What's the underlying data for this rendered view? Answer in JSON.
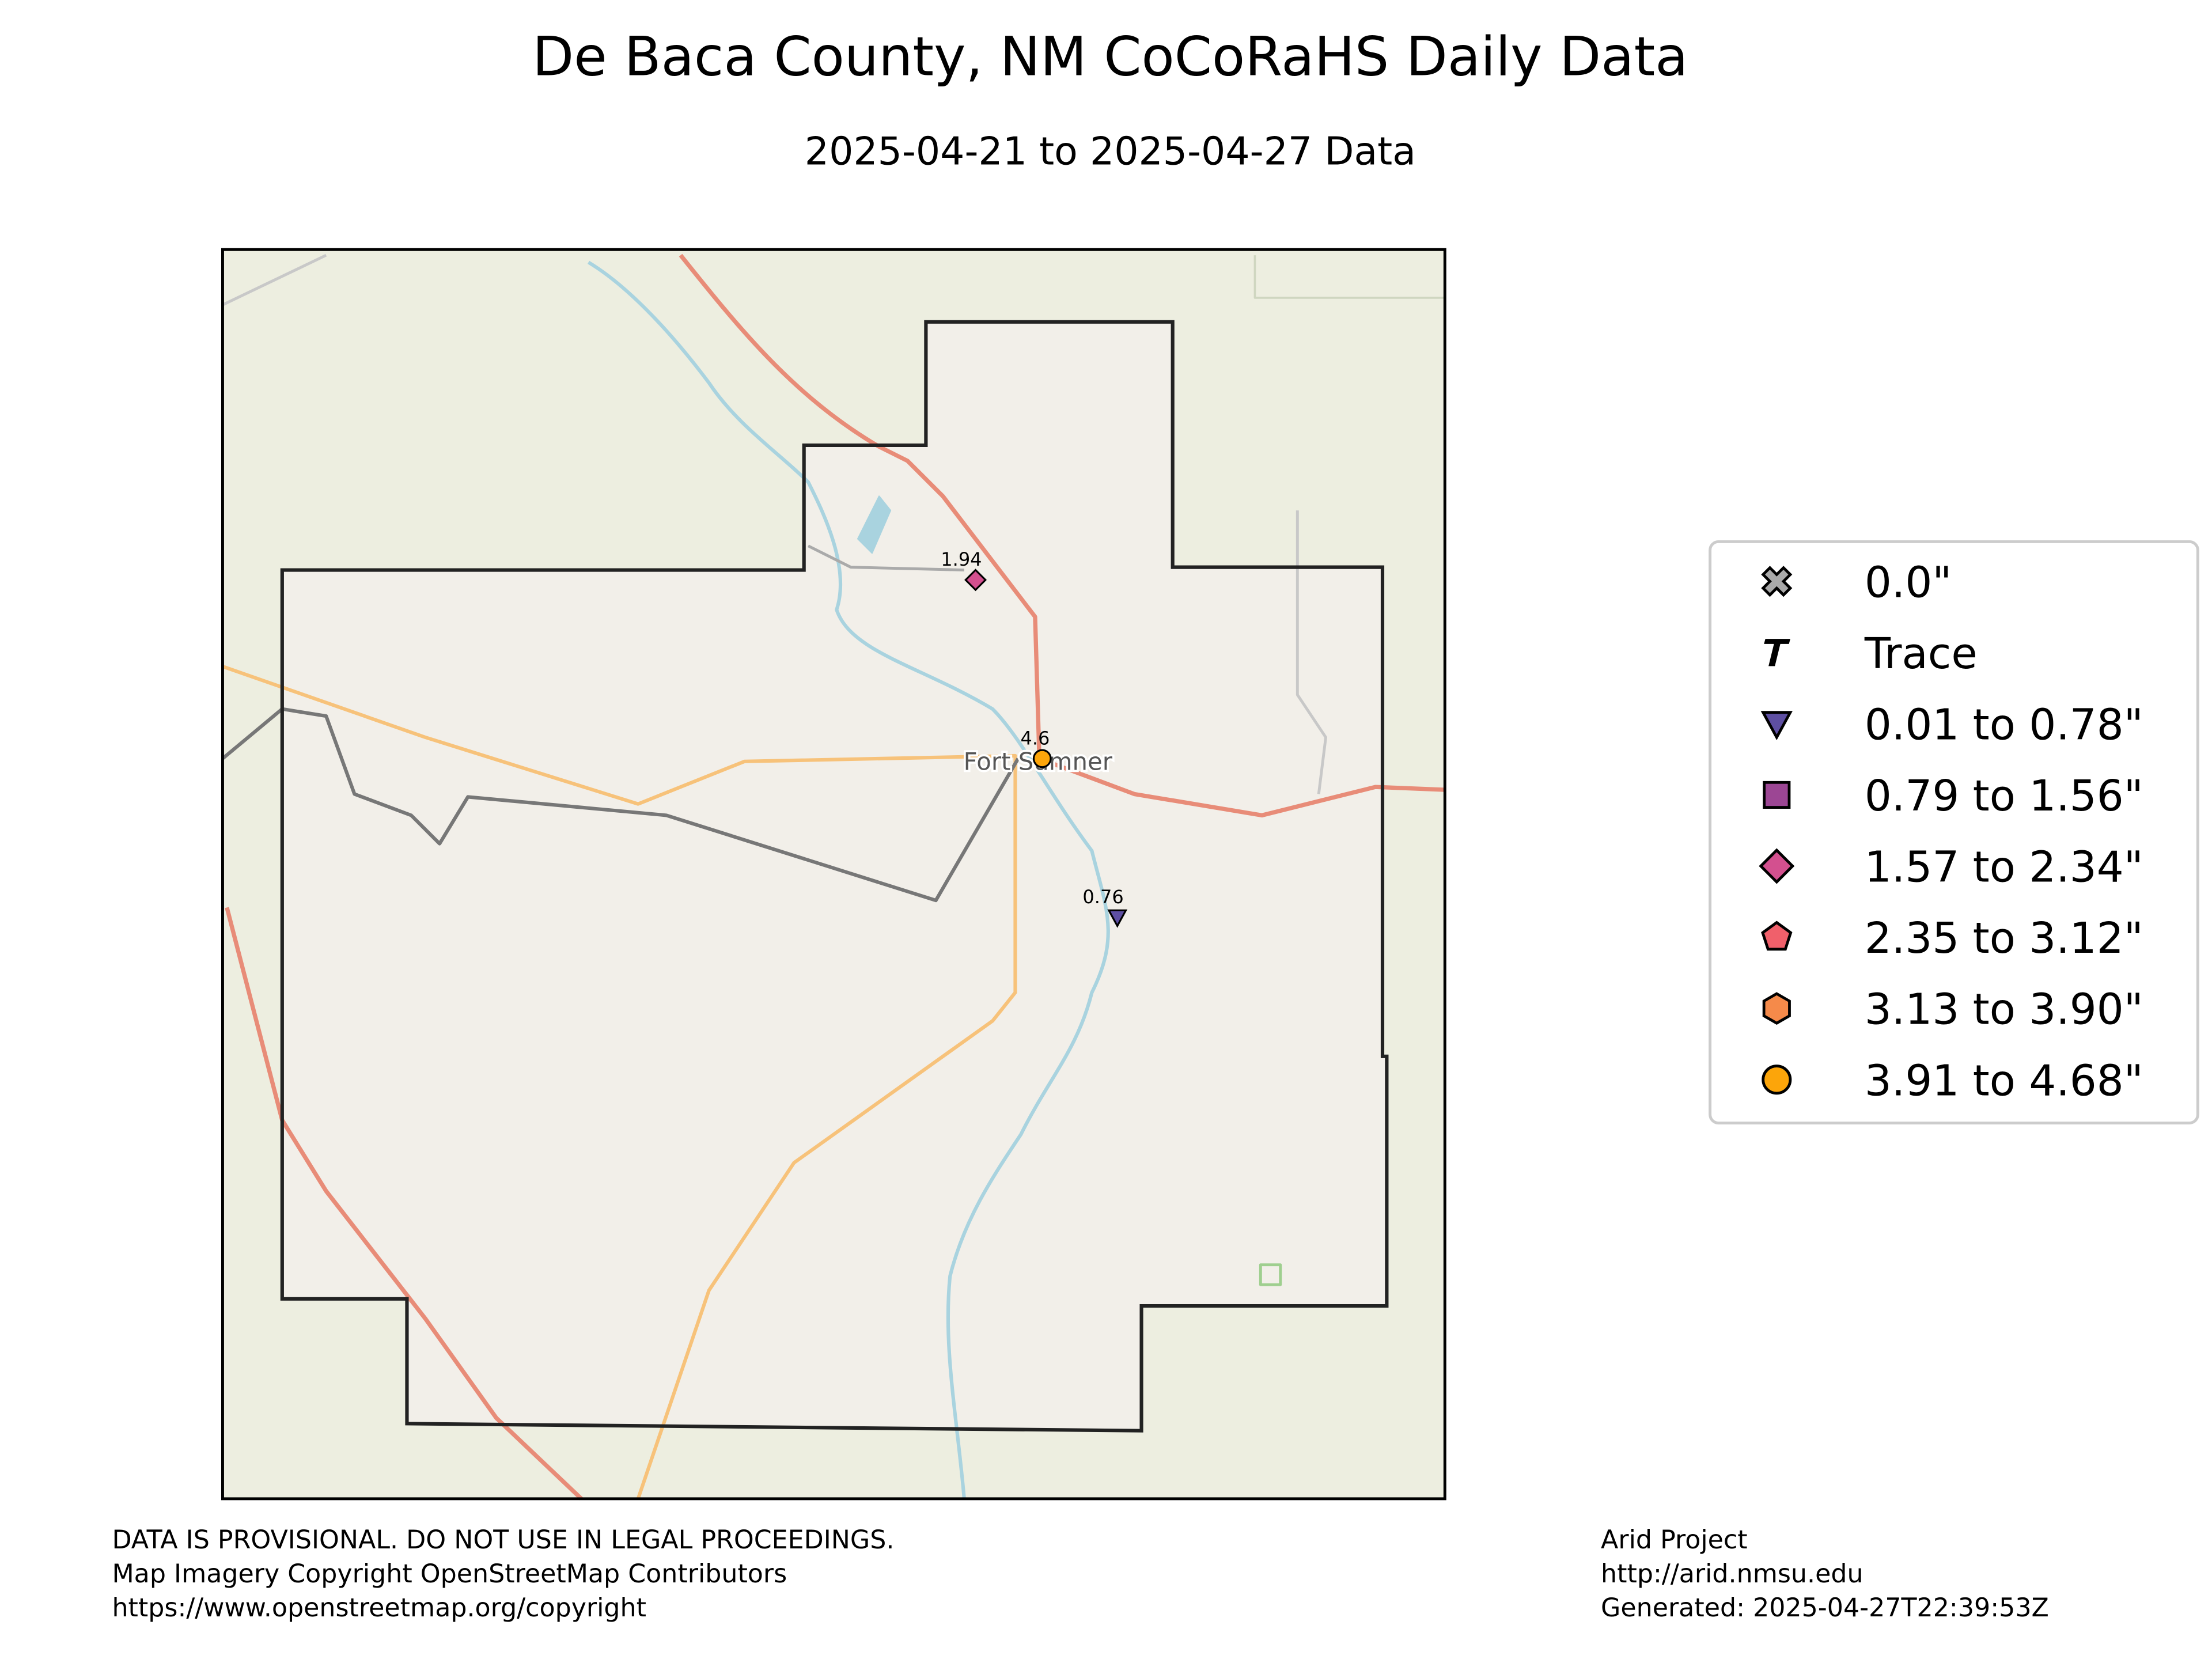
{
  "title": "De Baca County, NM CoCoRaHS Daily Data",
  "subtitle": "2025-04-21 to 2025-04-27 Data",
  "map": {
    "place_label": "Fort Sumner",
    "stations": [
      {
        "value": 1.94,
        "marker": "diamond",
        "color": "#d3508f"
      },
      {
        "value": 4.6,
        "marker": "circle",
        "color": "#fca50a"
      },
      {
        "value": 0.76,
        "marker": "triangle",
        "color": "#5e4fa2"
      }
    ]
  },
  "legend": [
    {
      "label": "0.0\"",
      "marker": "x",
      "color": "#aaaaaa"
    },
    {
      "label": "Trace",
      "marker": "T",
      "color": "#000000"
    },
    {
      "label": "0.01 to 0.78\"",
      "marker": "triangle",
      "color": "#5e4fa2"
    },
    {
      "label": "0.79 to 1.56\"",
      "marker": "square",
      "color": "#9c4694"
    },
    {
      "label": "1.57 to 2.34\"",
      "marker": "diamond",
      "color": "#d3508f"
    },
    {
      "label": "2.35 to 3.12\"",
      "marker": "pentagon",
      "color": "#f0606b"
    },
    {
      "label": "3.13 to 3.90\"",
      "marker": "hexagon",
      "color": "#f58a4a"
    },
    {
      "label": "3.91 to 4.68\"",
      "marker": "circle",
      "color": "#fca50a"
    }
  ],
  "footer": {
    "left": [
      "DATA IS PROVISIONAL. DO NOT USE IN LEGAL PROCEEDINGS.",
      "Map Imagery Copyright OpenStreetMap Contributors",
      "https://www.openstreetmap.org/copyright"
    ],
    "right": [
      "Arid Project",
      "http://arid.nmsu.edu",
      "Generated: 2025-04-27T22:39:53Z"
    ]
  }
}
